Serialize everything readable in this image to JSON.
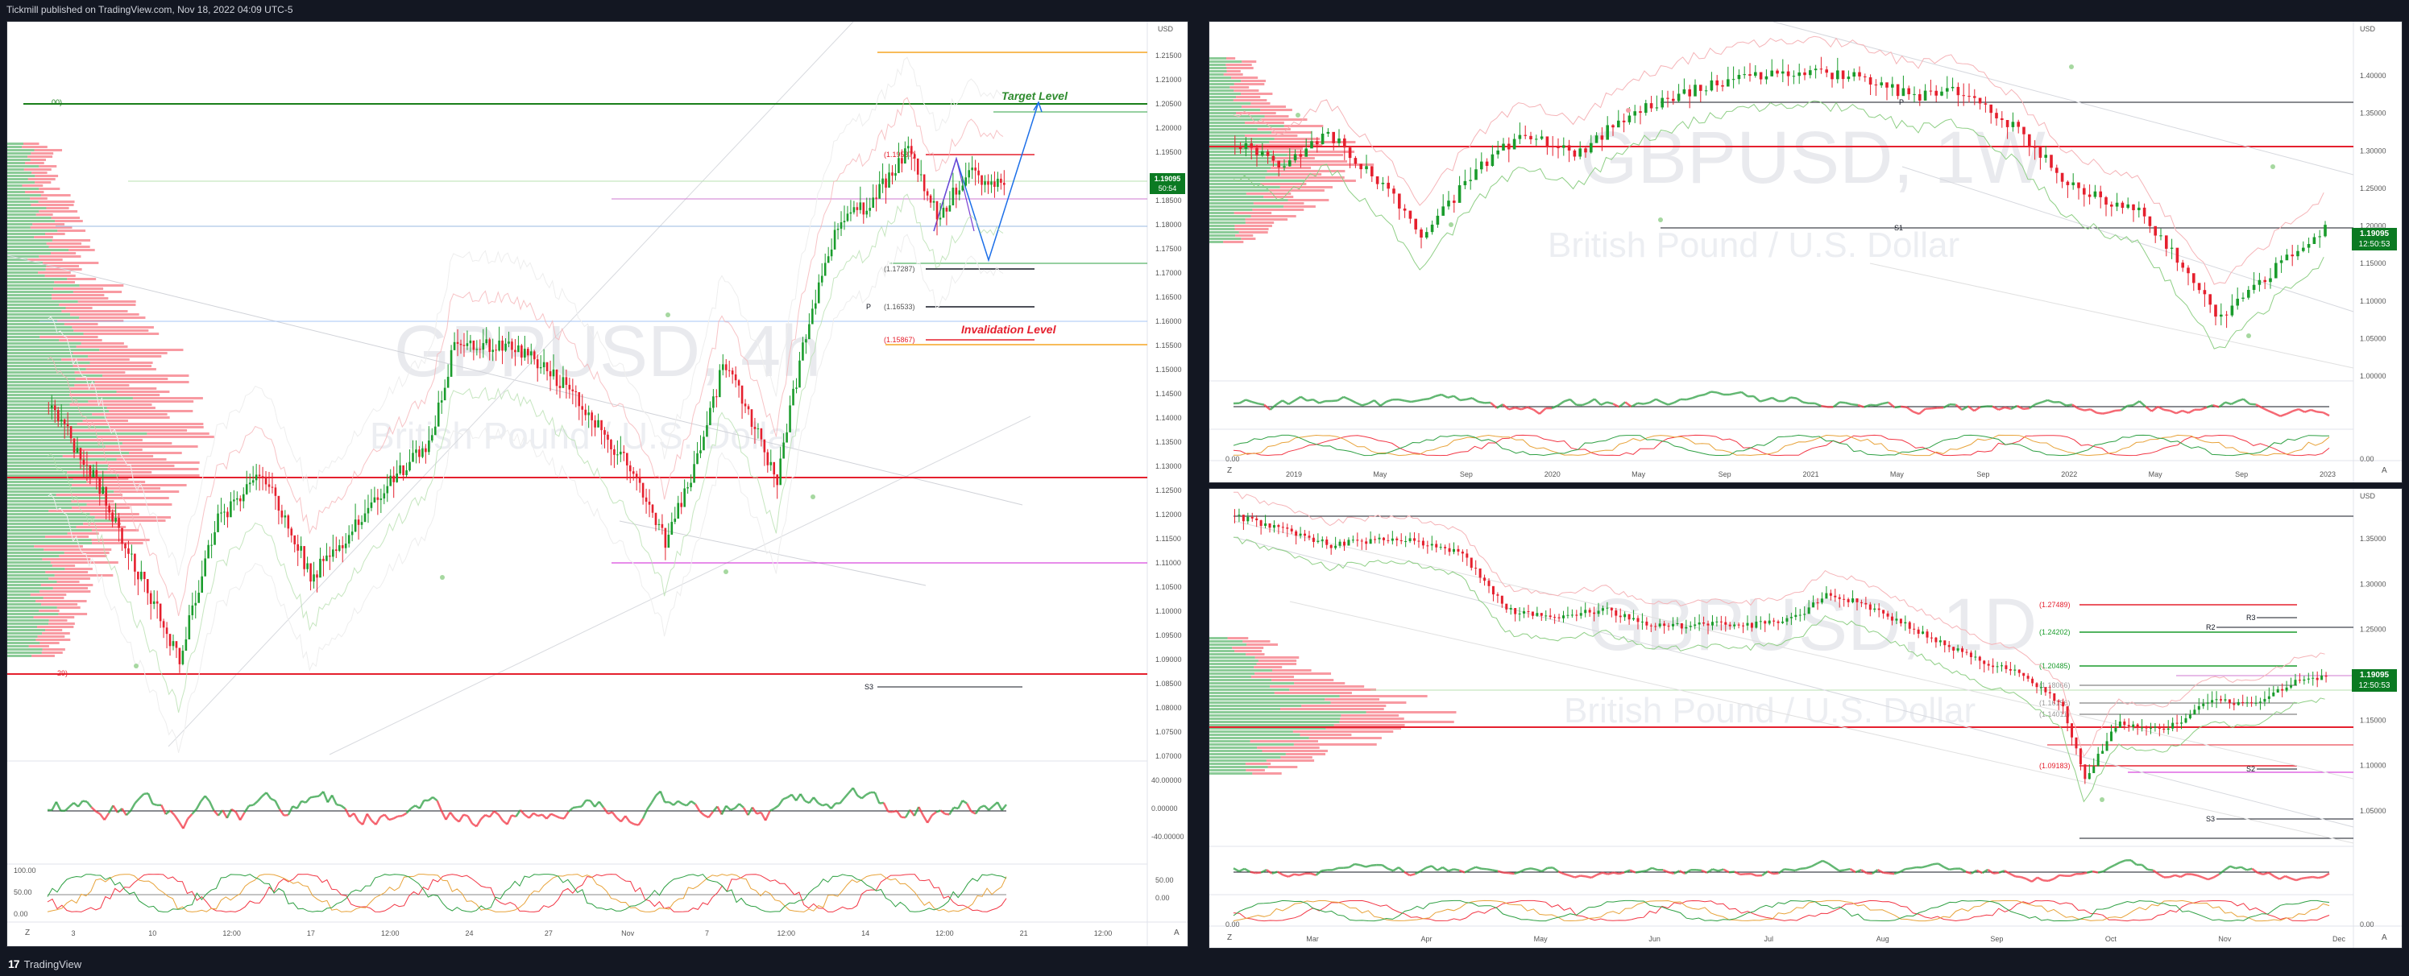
{
  "header": {
    "publisher_text": "Tickmill published on TradingView.com, Nov 18, 2022 04:09 UTC-5"
  },
  "footer": {
    "brand": "TradingView"
  },
  "colors": {
    "up": "#089981",
    "up_bright": "#1a9c2c",
    "down": "#f23645",
    "bg": "#ffffff",
    "frame": "#131722",
    "price_tag": "#0b7a22"
  },
  "left_chart": {
    "watermark_symbol": "GBPUSD, 4h",
    "watermark_desc": "British Pound / U.S. Dollar",
    "currency": "USD",
    "price_tag": "1.19095",
    "price_tag_sub": "50:54",
    "price_axis": [
      "1.21500",
      "1.21000",
      "1.20500",
      "1.20000",
      "1.19500",
      "1.19000",
      "1.18500",
      "1.18000",
      "1.17500",
      "1.17000",
      "1.16500",
      "1.16000",
      "1.15500",
      "1.15000",
      "1.14500",
      "1.14000",
      "1.13500",
      "1.13000",
      "1.12500",
      "1.12000",
      "1.11500",
      "1.11000",
      "1.10500",
      "1.10000",
      "1.09500",
      "1.09000",
      "1.08500",
      "1.08000",
      "1.07500",
      "1.07000"
    ],
    "osc1_axis": [
      "40.00000",
      "0.00000",
      "-40.00000"
    ],
    "osc2_axis": [
      "50.00",
      "0.00"
    ],
    "osc3_axis": [
      "100.00",
      "50.00",
      "0.00"
    ],
    "time_axis": [
      "3",
      "10",
      "12:00",
      "17",
      "12:00",
      "24",
      "27",
      "Nov",
      "7",
      "12:00",
      "14",
      "12:00",
      "21",
      "12:00"
    ],
    "annotations": {
      "target": "Target  Level",
      "invalidation": "Invalidation Level",
      "level_1": "(1.19587)",
      "level_2": "(1.17287)",
      "level_3": "(1.16533)",
      "level_4": "(1.15867)",
      "pivot": "P",
      "s3": "S3",
      "left_top": "00)",
      "left_bottom": "29)"
    }
  },
  "weekly_chart": {
    "watermark_symbol": "GBPUSD, 1W",
    "watermark_desc": "British Pound / U.S. Dollar",
    "currency": "USD",
    "price_tag": "1.19095",
    "price_tag_sub": "12:50:53",
    "price_axis": [
      "1.40000",
      "1.35000",
      "1.30000",
      "1.25000",
      "1.20000",
      "1.15000",
      "1.10000",
      "1.05000",
      "1.00000"
    ],
    "osc_axis": [
      "0.00000"
    ],
    "osc2_axis": [
      "0.00"
    ],
    "time_axis": [
      "2019",
      "May",
      "Sep",
      "2020",
      "May",
      "Sep",
      "2021",
      "May",
      "Sep",
      "2022",
      "May",
      "Sep",
      "2023"
    ],
    "annotations": {
      "pivot": "P",
      "s1": "S1"
    }
  },
  "daily_chart": {
    "watermark_symbol": "GBPUSD, 1D",
    "watermark_desc": "British Pound / U.S. Dollar",
    "currency": "USD",
    "price_tag": "1.19095",
    "price_tag_sub": "12:50:53",
    "price_axis": [
      "1.35000",
      "1.30000",
      "1.25000",
      "1.20000",
      "1.15000",
      "1.10000",
      "1.05000"
    ],
    "osc_axis": [
      "0.00000"
    ],
    "osc2_axis": [
      "0.00"
    ],
    "time_axis": [
      "Mar",
      "Apr",
      "May",
      "Jun",
      "Jul",
      "Aug",
      "Sep",
      "Oct",
      "Nov",
      "Dec"
    ],
    "annotations": {
      "level_1": "(1.27489)",
      "level_2": "(1.24202)",
      "level_3": "(1.20485)",
      "level_4": "(1.18066)",
      "level_5": "(1.16156)",
      "level_6": "(1.14011)",
      "level_7": "(1.09183)",
      "r3": "R3",
      "r2": "R2",
      "s3": "S3",
      "s2": "S2"
    }
  }
}
